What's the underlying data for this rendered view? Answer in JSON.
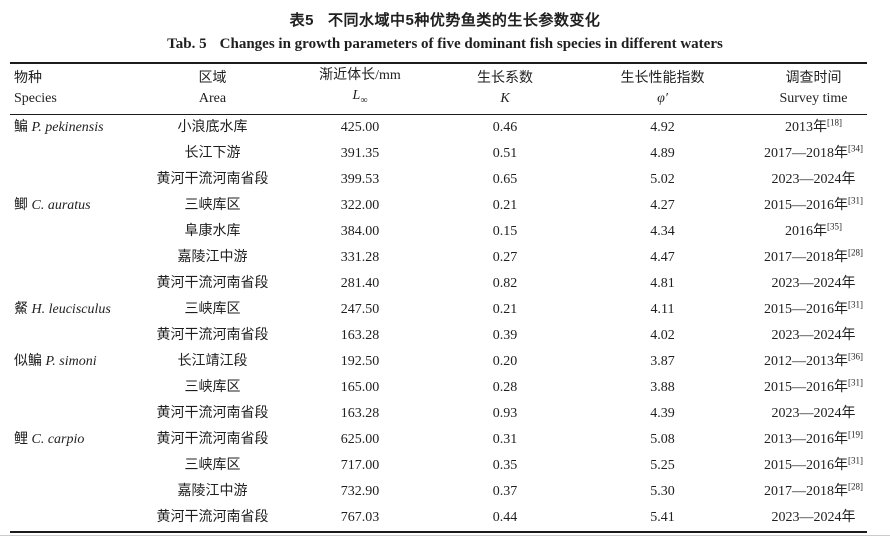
{
  "captions": {
    "cn_label": "表5",
    "cn_text": "不同水域中5种优势鱼类的生长参数变化",
    "en_label": "Tab. 5",
    "en_text": "Changes in growth parameters of five dominant fish species in different waters"
  },
  "table": {
    "columns": {
      "species_cn": "物种",
      "species_en": "Species",
      "area_cn": "区域",
      "area_en": "Area",
      "linf_cn": "渐近体长/mm",
      "linf_sym": "L",
      "linf_sub": "∞",
      "k_cn": "生长系数",
      "k_sym": "K",
      "phi_cn": "生长性能指数",
      "phi_sym": "φ′",
      "time_cn": "调查时间",
      "time_en": "Survey time"
    },
    "groups": [
      {
        "species_cn": "鳊",
        "species_latin": "P. pekinensis",
        "rows": [
          {
            "area": "小浪底水库",
            "linf": "425.00",
            "k": "0.46",
            "phi": "4.92",
            "time": "2013年",
            "ref": "[18]"
          },
          {
            "area": "长江下游",
            "linf": "391.35",
            "k": "0.51",
            "phi": "4.89",
            "time": "2017—2018年",
            "ref": "[34]"
          },
          {
            "area": "黄河干流河南省段",
            "linf": "399.53",
            "k": "0.65",
            "phi": "5.02",
            "time": "2023—2024年",
            "ref": ""
          }
        ]
      },
      {
        "species_cn": "鲫",
        "species_latin": "C. auratus",
        "rows": [
          {
            "area": "三峡库区",
            "linf": "322.00",
            "k": "0.21",
            "phi": "4.27",
            "time": "2015—2016年",
            "ref": "[31]"
          },
          {
            "area": "阜康水库",
            "linf": "384.00",
            "k": "0.15",
            "phi": "4.34",
            "time": "2016年",
            "ref": "[35]"
          },
          {
            "area": "嘉陵江中游",
            "linf": "331.28",
            "k": "0.27",
            "phi": "4.47",
            "time": "2017—2018年",
            "ref": "[28]"
          },
          {
            "area": "黄河干流河南省段",
            "linf": "281.40",
            "k": "0.82",
            "phi": "4.81",
            "time": "2023—2024年",
            "ref": ""
          }
        ]
      },
      {
        "species_cn": "䱗",
        "species_latin": "H. leucisculus",
        "rows": [
          {
            "area": "三峡库区",
            "linf": "247.50",
            "k": "0.21",
            "phi": "4.11",
            "time": "2015—2016年",
            "ref": "[31]"
          },
          {
            "area": "黄河干流河南省段",
            "linf": "163.28",
            "k": "0.39",
            "phi": "4.02",
            "time": "2023—2024年",
            "ref": ""
          }
        ]
      },
      {
        "species_cn": "似鳊",
        "species_latin": "P. simoni",
        "rows": [
          {
            "area": "长江靖江段",
            "linf": "192.50",
            "k": "0.20",
            "phi": "3.87",
            "time": "2012—2013年",
            "ref": "[36]"
          },
          {
            "area": "三峡库区",
            "linf": "165.00",
            "k": "0.28",
            "phi": "3.88",
            "time": "2015—2016年",
            "ref": "[31]"
          },
          {
            "area": "黄河干流河南省段",
            "linf": "163.28",
            "k": "0.93",
            "phi": "4.39",
            "time": "2023—2024年",
            "ref": ""
          }
        ]
      },
      {
        "species_cn": "鲤",
        "species_latin": "C. carpio",
        "rows": [
          {
            "area": "黄河干流河南省段",
            "linf": "625.00",
            "k": "0.31",
            "phi": "5.08",
            "time": "2013—2016年",
            "ref": "[19]"
          },
          {
            "area": "三峡库区",
            "linf": "717.00",
            "k": "0.35",
            "phi": "5.25",
            "time": "2015—2016年",
            "ref": "[31]"
          },
          {
            "area": "嘉陵江中游",
            "linf": "732.90",
            "k": "0.37",
            "phi": "5.30",
            "time": "2017—2018年",
            "ref": "[28]"
          },
          {
            "area": "黄河干流河南省段",
            "linf": "767.03",
            "k": "0.44",
            "phi": "5.41",
            "time": "2023—2024年",
            "ref": ""
          }
        ]
      }
    ]
  }
}
